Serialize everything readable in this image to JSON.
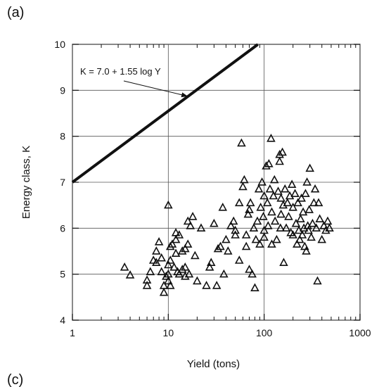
{
  "panel_labels": {
    "top": "(a)",
    "bottom": "(c)"
  },
  "colors": {
    "line": "#111111",
    "grid": "#555555",
    "marker": "#111111",
    "background": "#ffffff"
  },
  "chart_data": {
    "type": "scatter",
    "title": "",
    "xlabel": "Yield (tons)",
    "ylabel": "Energy class, K",
    "xscale": "log",
    "xlim": [
      1,
      1000
    ],
    "ylim": [
      4,
      10
    ],
    "xticks": [
      1,
      10,
      100,
      1000
    ],
    "xtick_labels": [
      "1",
      "10",
      "100",
      "1000"
    ],
    "yticks": [
      4,
      5,
      6,
      7,
      8,
      9,
      10
    ],
    "ytick_labels": [
      "4",
      "5",
      "6",
      "7",
      "8",
      "9",
      "10"
    ],
    "grid": true,
    "marker": "open-triangle",
    "annotation": {
      "text": "K = 7.0 + 1.55 log Y",
      "arrow_to_x": 16,
      "arrow_to_y": 8.87
    },
    "fit_line": {
      "equation": "K = 7.0 + 1.55 log Y",
      "intercept": 7.0,
      "slope": 1.55,
      "x": [
        1,
        86
      ]
    },
    "points": [
      [
        3.5,
        5.15
      ],
      [
        4,
        4.98
      ],
      [
        6,
        4.87
      ],
      [
        6,
        4.75
      ],
      [
        6.5,
        5.05
      ],
      [
        7,
        5.3
      ],
      [
        7.5,
        5.5
      ],
      [
        7.5,
        5.25
      ],
      [
        8,
        5.7
      ],
      [
        8.5,
        5.35
      ],
      [
        8.5,
        5.05
      ],
      [
        9,
        4.75
      ],
      [
        9,
        4.6
      ],
      [
        9.5,
        4.95
      ],
      [
        10,
        6.5
      ],
      [
        10,
        5.2
      ],
      [
        10,
        5.0
      ],
      [
        10,
        4.85
      ],
      [
        10.5,
        5.6
      ],
      [
        10.5,
        5.3
      ],
      [
        10.5,
        4.75
      ],
      [
        11,
        5.65
      ],
      [
        11.5,
        5.15
      ],
      [
        12,
        5.9
      ],
      [
        12,
        5.75
      ],
      [
        12,
        5.45
      ],
      [
        12.5,
        5.05
      ],
      [
        13,
        5.85
      ],
      [
        13,
        5.0
      ],
      [
        14,
        5.5
      ],
      [
        14,
        5.1
      ],
      [
        15,
        5.55
      ],
      [
        15,
        5.15
      ],
      [
        15,
        4.95
      ],
      [
        16,
        6.15
      ],
      [
        16,
        5.65
      ],
      [
        16.5,
        5.0
      ],
      [
        17,
        6.05
      ],
      [
        18,
        6.25
      ],
      [
        19,
        5.4
      ],
      [
        20,
        4.85
      ],
      [
        22,
        6.0
      ],
      [
        25,
        4.75
      ],
      [
        27,
        5.15
      ],
      [
        28,
        5.25
      ],
      [
        30,
        6.1
      ],
      [
        32,
        4.75
      ],
      [
        33,
        5.55
      ],
      [
        35,
        5.6
      ],
      [
        37,
        6.45
      ],
      [
        38,
        5.0
      ],
      [
        40,
        5.75
      ],
      [
        42,
        5.5
      ],
      [
        45,
        6.05
      ],
      [
        48,
        6.15
      ],
      [
        50,
        5.95
      ],
      [
        50,
        5.85
      ],
      [
        55,
        6.55
      ],
      [
        55,
        5.3
      ],
      [
        58,
        7.85
      ],
      [
        60,
        6.9
      ],
      [
        62,
        7.05
      ],
      [
        65,
        5.85
      ],
      [
        65,
        5.6
      ],
      [
        68,
        6.3
      ],
      [
        70,
        6.4
      ],
      [
        70,
        5.1
      ],
      [
        72,
        6.55
      ],
      [
        75,
        5.0
      ],
      [
        78,
        6.0
      ],
      [
        80,
        4.7
      ],
      [
        82,
        5.75
      ],
      [
        85,
        6.15
      ],
      [
        88,
        6.85
      ],
      [
        90,
        5.65
      ],
      [
        92,
        6.45
      ],
      [
        95,
        7.0
      ],
      [
        98,
        6.25
      ],
      [
        100,
        6.7
      ],
      [
        100,
        5.95
      ],
      [
        100,
        5.8
      ],
      [
        105,
        7.35
      ],
      [
        108,
        6.55
      ],
      [
        110,
        6.05
      ],
      [
        112,
        7.4
      ],
      [
        115,
        6.85
      ],
      [
        118,
        7.95
      ],
      [
        120,
        6.35
      ],
      [
        120,
        5.65
      ],
      [
        125,
        6.7
      ],
      [
        128,
        7.05
      ],
      [
        130,
        6.15
      ],
      [
        135,
        5.75
      ],
      [
        140,
        6.8
      ],
      [
        145,
        7.6
      ],
      [
        145,
        7.45
      ],
      [
        148,
        6.0
      ],
      [
        150,
        6.65
      ],
      [
        150,
        6.3
      ],
      [
        155,
        7.65
      ],
      [
        158,
        6.5
      ],
      [
        160,
        5.25
      ],
      [
        165,
        6.85
      ],
      [
        170,
        6.0
      ],
      [
        175,
        6.55
      ],
      [
        180,
        6.25
      ],
      [
        185,
        6.7
      ],
      [
        190,
        5.9
      ],
      [
        195,
        6.95
      ],
      [
        200,
        5.85
      ],
      [
        200,
        6.45
      ],
      [
        210,
        6.75
      ],
      [
        215,
        6.1
      ],
      [
        220,
        5.65
      ],
      [
        225,
        6.55
      ],
      [
        230,
        5.95
      ],
      [
        235,
        5.75
      ],
      [
        240,
        6.2
      ],
      [
        245,
        6.65
      ],
      [
        250,
        5.85
      ],
      [
        255,
        6.35
      ],
      [
        260,
        6.0
      ],
      [
        265,
        5.6
      ],
      [
        270,
        6.75
      ],
      [
        275,
        5.5
      ],
      [
        280,
        7.0
      ],
      [
        285,
        6.05
      ],
      [
        290,
        5.95
      ],
      [
        295,
        6.4
      ],
      [
        300,
        7.3
      ],
      [
        310,
        5.8
      ],
      [
        320,
        6.1
      ],
      [
        330,
        6.55
      ],
      [
        340,
        6.85
      ],
      [
        350,
        6.0
      ],
      [
        360,
        4.85
      ],
      [
        370,
        6.55
      ],
      [
        380,
        6.2
      ],
      [
        400,
        5.75
      ],
      [
        420,
        6.05
      ],
      [
        440,
        5.95
      ],
      [
        460,
        6.15
      ],
      [
        480,
        6.0
      ]
    ]
  }
}
